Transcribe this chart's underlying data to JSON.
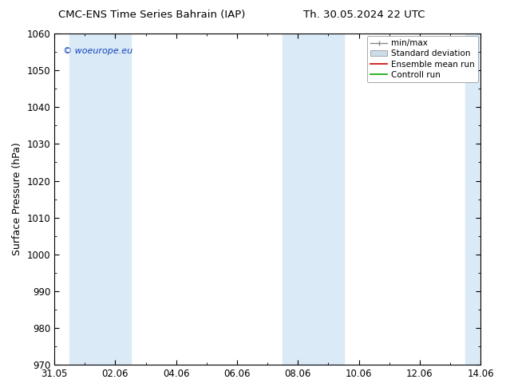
{
  "title_left": "CMC-ENS Time Series Bahrain (IAP)",
  "title_right": "Th. 30.05.2024 22 UTC",
  "ylabel": "Surface Pressure (hPa)",
  "ylim": [
    970,
    1060
  ],
  "yticks": [
    970,
    980,
    990,
    1000,
    1010,
    1020,
    1030,
    1040,
    1050,
    1060
  ],
  "xlim_num": [
    0,
    14
  ],
  "xtick_positions": [
    0,
    2,
    4,
    6,
    8,
    10,
    12,
    14
  ],
  "xtick_labels": [
    "31.05",
    "02.06",
    "04.06",
    "06.06",
    "08.06",
    "10.06",
    "12.06",
    "14.06"
  ],
  "watermark": "© woeurope.eu",
  "shaded_regions": [
    {
      "xmin": 0.5,
      "xmax": 2.5,
      "color": "#daeaf7"
    },
    {
      "xmin": 7.5,
      "xmax": 9.5,
      "color": "#daeaf7"
    },
    {
      "xmin": 13.5,
      "xmax": 14.0,
      "color": "#daeaf7"
    }
  ],
  "legend_items": [
    {
      "label": "min/max",
      "color": "#aaaaaa",
      "type": "minmax"
    },
    {
      "label": "Standard deviation",
      "color": "#ccddee",
      "type": "stddev"
    },
    {
      "label": "Ensemble mean run",
      "color": "#cc0000",
      "type": "line"
    },
    {
      "label": "Controll run",
      "color": "#00aa00",
      "type": "line"
    }
  ],
  "background_color": "#ffffff",
  "plot_bg_color": "#ffffff",
  "title_fontsize": 9.5,
  "axis_fontsize": 9,
  "tick_fontsize": 8.5,
  "legend_fontsize": 7.5
}
